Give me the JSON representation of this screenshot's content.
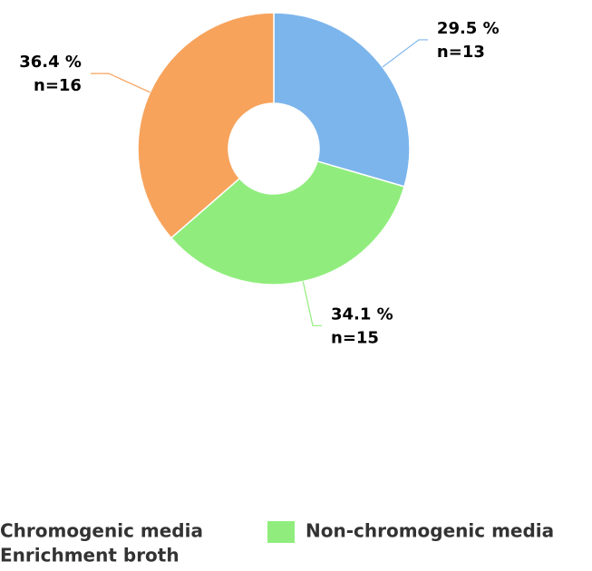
{
  "chart_data": {
    "type": "pie",
    "categories": [
      "Chromogenic media",
      "Non-chromogenic media",
      "Enrichment broth"
    ],
    "values": [
      29.5,
      34.1,
      36.4
    ],
    "value_labels": [
      "29.5 %",
      "34.1 %",
      "36.4 %"
    ],
    "counts": [
      13,
      15,
      16
    ],
    "count_labels": [
      "n=13",
      "n=15",
      "n=16"
    ],
    "colors": [
      "#7cb5ec",
      "#90ed7d",
      "#f7a35c"
    ],
    "donut": true,
    "legend": "bottom"
  }
}
